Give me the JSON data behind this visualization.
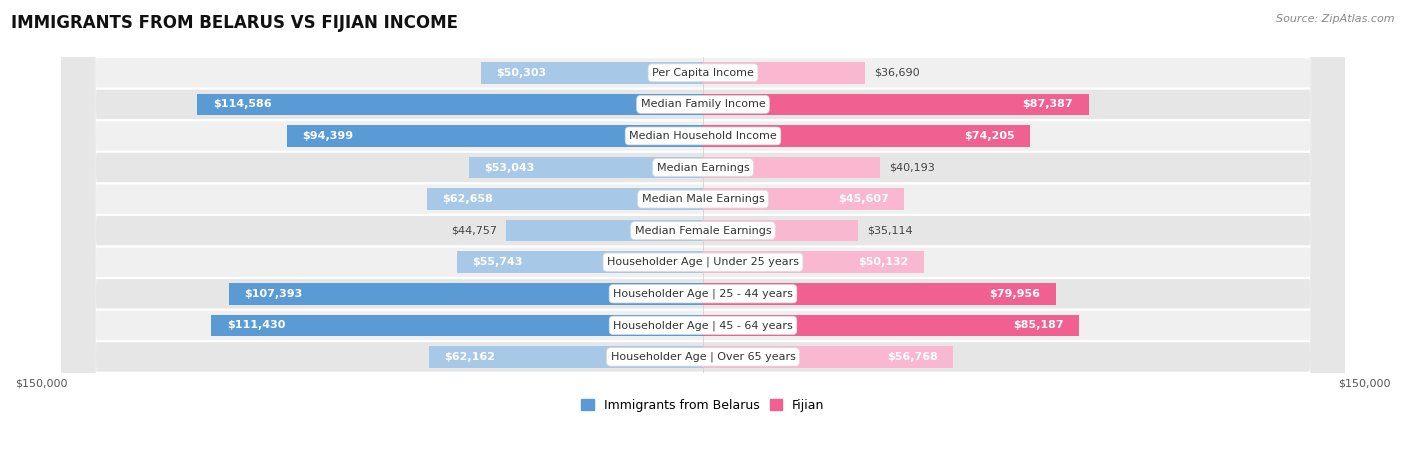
{
  "title": "IMMIGRANTS FROM BELARUS VS FIJIAN INCOME",
  "source": "Source: ZipAtlas.com",
  "categories": [
    "Per Capita Income",
    "Median Family Income",
    "Median Household Income",
    "Median Earnings",
    "Median Male Earnings",
    "Median Female Earnings",
    "Householder Age | Under 25 years",
    "Householder Age | 25 - 44 years",
    "Householder Age | 45 - 64 years",
    "Householder Age | Over 65 years"
  ],
  "belarus_values": [
    50303,
    114586,
    94399,
    53043,
    62658,
    44757,
    55743,
    107393,
    111430,
    62162
  ],
  "fijian_values": [
    36690,
    87387,
    74205,
    40193,
    45607,
    35114,
    50132,
    79956,
    85187,
    56768
  ],
  "belarus_color_light": "#a8c8e8",
  "belarus_color_dark": "#5b9bd5",
  "fijian_color_light": "#f9b8d0",
  "fijian_color_dark": "#f06090",
  "max_value": 150000,
  "title_fontsize": 12,
  "label_fontsize": 8,
  "value_fontsize": 8,
  "legend_fontsize": 9,
  "source_fontsize": 8,
  "inside_threshold": 70000
}
